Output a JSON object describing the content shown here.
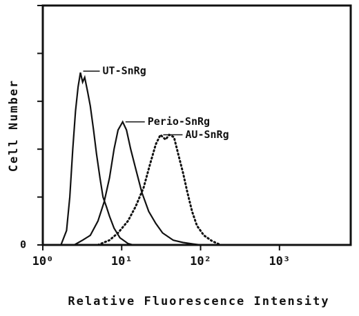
{
  "chart_data": {
    "type": "line",
    "x_label": "Relative Fluorescence Intensity",
    "y_label": "Cell Number",
    "log_x": true,
    "xlim": [
      1,
      8000
    ],
    "xticks": [
      {
        "value": 1,
        "label": "10⁰"
      },
      {
        "value": 10,
        "label": "10¹"
      },
      {
        "value": 100,
        "label": "10²"
      },
      {
        "value": 1000,
        "label": "10³"
      }
    ],
    "ylim": [
      0,
      5
    ],
    "yticks": [
      0
    ],
    "minor_yticks": [
      1,
      2,
      3,
      4,
      5
    ],
    "series": [
      {
        "name": "UT-SnRg",
        "color": "#111111",
        "style": "solid",
        "x": [
          1.7,
          2.0,
          2.2,
          2.4,
          2.6,
          2.8,
          3.0,
          3.2,
          3.4,
          3.7,
          4.0,
          4.4,
          4.8,
          5.3,
          5.8,
          6.4,
          7.0,
          8.0,
          9.5,
          12,
          14
        ],
        "values": [
          0,
          0.3,
          1.0,
          2.0,
          2.8,
          3.3,
          3.6,
          3.4,
          3.5,
          3.2,
          2.9,
          2.4,
          1.9,
          1.4,
          1.0,
          0.8,
          0.6,
          0.35,
          0.15,
          0.03,
          0
        ]
      },
      {
        "name": "Perio-SnRg",
        "color": "#111111",
        "style": "solid",
        "x": [
          2.5,
          3.2,
          4.0,
          5.0,
          6.0,
          7.0,
          8.0,
          9.0,
          10.3,
          11.5,
          13,
          15,
          18,
          22,
          27,
          33,
          45,
          60,
          80,
          100
        ],
        "values": [
          0,
          0.1,
          0.2,
          0.5,
          0.9,
          1.4,
          2.0,
          2.4,
          2.57,
          2.4,
          2.0,
          1.6,
          1.1,
          0.7,
          0.45,
          0.25,
          0.1,
          0.05,
          0.02,
          0
        ]
      },
      {
        "name": "AU-SnRg",
        "color": "#111111",
        "style": "dotted",
        "x": [
          5,
          7,
          9,
          12,
          15,
          19,
          23,
          27,
          31,
          36,
          40,
          46,
          52,
          60,
          68,
          78,
          90,
          110,
          140,
          180
        ],
        "values": [
          0,
          0.1,
          0.25,
          0.5,
          0.8,
          1.2,
          1.7,
          2.1,
          2.3,
          2.2,
          2.3,
          2.25,
          1.9,
          1.5,
          1.1,
          0.7,
          0.4,
          0.2,
          0.08,
          0
        ]
      }
    ]
  }
}
